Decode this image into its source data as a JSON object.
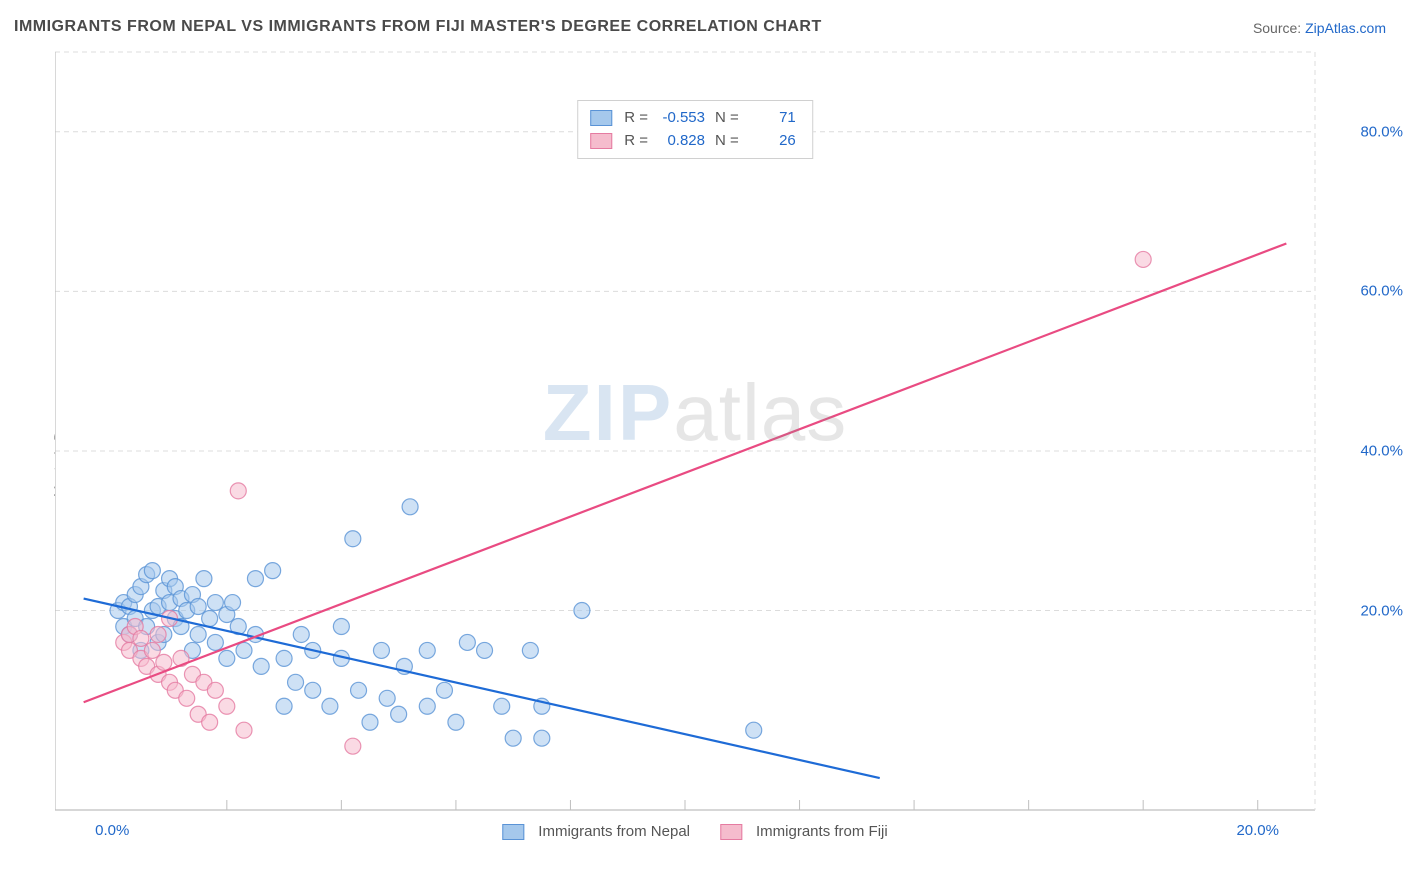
{
  "title": "IMMIGRANTS FROM NEPAL VS IMMIGRANTS FROM FIJI MASTER'S DEGREE CORRELATION CHART",
  "source_label": "Source: ",
  "source_link": "ZipAtlas.com",
  "ylabel": "Master's Degree",
  "watermark": {
    "part1": "ZIP",
    "part2": "atlas"
  },
  "chart": {
    "type": "scatter",
    "background_color": "#ffffff",
    "grid_color": "#dcdcdc",
    "axis_color": "#bfbfbf",
    "tick_label_color": "#2168c9",
    "label_fontsize": 14,
    "tick_fontsize": 15,
    "title_fontsize": 16,
    "title_color": "#4a4a4a",
    "xlim": [
      -1,
      21
    ],
    "ylim": [
      -5,
      90
    ],
    "xtick_positions": [
      0,
      20
    ],
    "xtick_labels": [
      "0.0%",
      "20.0%"
    ],
    "ytick_positions": [
      20,
      40,
      60,
      80
    ],
    "ytick_labels": [
      "20.0%",
      "40.0%",
      "60.0%",
      "80.0%"
    ],
    "xgrid_positions": [
      2,
      4,
      6,
      8,
      10,
      12,
      14,
      16,
      18,
      20
    ],
    "marker_radius": 8,
    "marker_opacity": 0.55,
    "line_width": 2.2,
    "series": [
      {
        "name": "Immigrants from Nepal",
        "fill_color": "#a5c8ec",
        "stroke_color": "#5a93d6",
        "line_color": "#1e6bd6",
        "R": "-0.553",
        "N": "71",
        "trend": {
          "x1": -0.5,
          "y1": 21.5,
          "x2": 13.4,
          "y2": -1
        },
        "points": [
          [
            0.1,
            20
          ],
          [
            0.2,
            18
          ],
          [
            0.2,
            21
          ],
          [
            0.3,
            17
          ],
          [
            0.3,
            20.5
          ],
          [
            0.4,
            19
          ],
          [
            0.4,
            22
          ],
          [
            0.5,
            15
          ],
          [
            0.5,
            23
          ],
          [
            0.6,
            18
          ],
          [
            0.6,
            24.5
          ],
          [
            0.7,
            20
          ],
          [
            0.7,
            25
          ],
          [
            0.8,
            20.5
          ],
          [
            0.8,
            16
          ],
          [
            0.9,
            22.5
          ],
          [
            0.9,
            17
          ],
          [
            1.0,
            21
          ],
          [
            1.0,
            24
          ],
          [
            1.1,
            19
          ],
          [
            1.1,
            23
          ],
          [
            1.2,
            18
          ],
          [
            1.2,
            21.5
          ],
          [
            1.3,
            20
          ],
          [
            1.4,
            15
          ],
          [
            1.4,
            22
          ],
          [
            1.5,
            17
          ],
          [
            1.5,
            20.5
          ],
          [
            1.6,
            24
          ],
          [
            1.7,
            19
          ],
          [
            1.8,
            16
          ],
          [
            1.8,
            21
          ],
          [
            2.0,
            19.5
          ],
          [
            2.0,
            14
          ],
          [
            2.1,
            21
          ],
          [
            2.2,
            18
          ],
          [
            2.3,
            15
          ],
          [
            2.5,
            24
          ],
          [
            2.5,
            17
          ],
          [
            2.6,
            13
          ],
          [
            2.8,
            25
          ],
          [
            3.0,
            8
          ],
          [
            3.0,
            14
          ],
          [
            3.2,
            11
          ],
          [
            3.3,
            17
          ],
          [
            3.5,
            10
          ],
          [
            3.5,
            15
          ],
          [
            3.8,
            8
          ],
          [
            4.0,
            14
          ],
          [
            4.0,
            18
          ],
          [
            4.2,
            29
          ],
          [
            4.3,
            10
          ],
          [
            4.5,
            6
          ],
          [
            4.7,
            15
          ],
          [
            4.8,
            9
          ],
          [
            5.0,
            7
          ],
          [
            5.1,
            13
          ],
          [
            5.2,
            33
          ],
          [
            5.5,
            8
          ],
          [
            5.5,
            15
          ],
          [
            5.8,
            10
          ],
          [
            6.0,
            6
          ],
          [
            6.2,
            16
          ],
          [
            6.5,
            15
          ],
          [
            6.8,
            8
          ],
          [
            7.0,
            4
          ],
          [
            7.3,
            15
          ],
          [
            7.5,
            8
          ],
          [
            7.5,
            4
          ],
          [
            8.2,
            20
          ],
          [
            11.2,
            5
          ]
        ]
      },
      {
        "name": "Immigrants from Fiji",
        "fill_color": "#f5bccd",
        "stroke_color": "#e57ba1",
        "line_color": "#e94b82",
        "R": "0.828",
        "N": "26",
        "trend": {
          "x1": -0.5,
          "y1": 8.5,
          "x2": 20.5,
          "y2": 66
        },
        "points": [
          [
            0.2,
            16
          ],
          [
            0.3,
            17
          ],
          [
            0.3,
            15
          ],
          [
            0.4,
            18
          ],
          [
            0.5,
            14
          ],
          [
            0.5,
            16.5
          ],
          [
            0.6,
            13
          ],
          [
            0.7,
            15
          ],
          [
            0.8,
            12
          ],
          [
            0.8,
            17
          ],
          [
            0.9,
            13.5
          ],
          [
            1.0,
            11
          ],
          [
            1.0,
            19
          ],
          [
            1.1,
            10
          ],
          [
            1.2,
            14
          ],
          [
            1.3,
            9
          ],
          [
            1.4,
            12
          ],
          [
            1.5,
            7
          ],
          [
            1.6,
            11
          ],
          [
            1.7,
            6
          ],
          [
            1.8,
            10
          ],
          [
            2.0,
            8
          ],
          [
            2.2,
            35
          ],
          [
            2.3,
            5
          ],
          [
            4.2,
            3
          ],
          [
            18.0,
            64
          ]
        ]
      }
    ]
  },
  "r_legend": {
    "r_label": "R =",
    "n_label": "N ="
  },
  "series_legend_labels": [
    "Immigrants from Nepal",
    "Immigrants from Fiji"
  ]
}
